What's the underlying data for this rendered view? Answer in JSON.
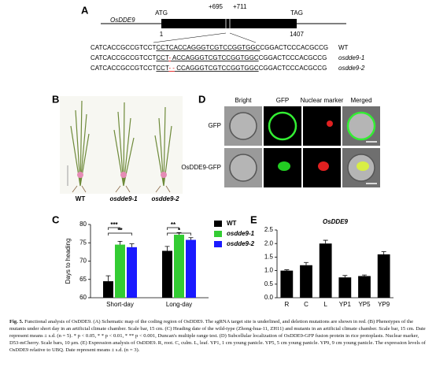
{
  "panel_labels": [
    "A",
    "B",
    "C",
    "D",
    "E"
  ],
  "schematic": {
    "gene": "OsDDE9",
    "start_codon": "ATG",
    "stop_codon": "TAG",
    "site_left": "+695",
    "site_right": "+711",
    "pos_start": "1",
    "pos_end": "1407",
    "sequences": [
      {
        "prefix": "CATCACCGCCGTCCT",
        "target": [
          {
            "text": "CCTCACCAGGGTCGTCCGGTGGC",
            "deleted": false
          }
        ],
        "suffix": "CGGACTCCCACGCCG",
        "label": "WT"
      },
      {
        "prefix": "CATCACCGCCGTCCT",
        "target": [
          {
            "text": "CCT",
            "deleted": false
          },
          {
            "text": "-",
            "deleted": true
          },
          {
            "text": " ACCAGGGTCGTCCGGTGGC",
            "deleted": false
          }
        ],
        "suffix": "CGGACTCCCACGCCG",
        "label": "osdde9-1"
      },
      {
        "prefix": "CATCACCGCCGTCCT",
        "target": [
          {
            "text": "CCT",
            "deleted": false
          },
          {
            "text": "- -",
            "deleted": true
          },
          {
            "text": " CCAGGGTCGTCCGGTGGC",
            "deleted": false
          }
        ],
        "suffix": "CGGACTCCCACGCCG",
        "label": "osdde9-2"
      }
    ]
  },
  "phenotype": {
    "labels": [
      "WT",
      "osdde9-1",
      "osdde9-2"
    ]
  },
  "localization": {
    "columns": [
      "Bright",
      "GFP",
      "Nuclear marker",
      "Merged"
    ],
    "rows": [
      "GFP",
      "OsDDE9-GFP"
    ]
  },
  "chart_data": [
    {
      "type": "grouped-bar",
      "y_label": "Days to heading",
      "categories": [
        "Short-day",
        "Long-day"
      ],
      "series": [
        {
          "name": "WT",
          "color": "#000000",
          "values": [
            64.5,
            72.8
          ],
          "errors": [
            1.5,
            1.2
          ]
        },
        {
          "name": "osdde9-1",
          "color": "#33cc33",
          "values": [
            74.5,
            77.2
          ],
          "errors": [
            0.9,
            0.6
          ]
        },
        {
          "name": "osdde9-2",
          "color": "#1a1aff",
          "values": [
            73.8,
            75.8
          ],
          "errors": [
            0.9,
            0.6
          ]
        }
      ],
      "annotations": [
        "***",
        "**",
        "**",
        "*"
      ],
      "ylim": [
        60,
        80
      ],
      "yticks": [
        60,
        65,
        70,
        75,
        80
      ]
    },
    {
      "type": "bar",
      "title": "OsDDE9",
      "categories": [
        "R",
        "C",
        "L",
        "YP1",
        "YP5",
        "YP9"
      ],
      "values": [
        1.0,
        1.2,
        2.0,
        0.75,
        0.8,
        1.6
      ],
      "errors": [
        0.03,
        0.1,
        0.12,
        0.07,
        0.04,
        0.1
      ],
      "color": "#000000",
      "ylim": [
        0,
        2.5
      ],
      "yticks": [
        {
          "value": 0,
          "label": "0.0"
        },
        0.5,
        {
          "value": 1,
          "label": "1.0"
        },
        1.5,
        {
          "value": 2,
          "label": "2.0"
        },
        2.5
      ]
    }
  ],
  "caption": {
    "label": "Fig. 5.",
    "text": "Functional analysis of OsDDE9. (A) Schematic map of the coding region of OsDDE9. The sgRNA target site is underlined, and deletion mutations are shown in red. (B) Phenotypes of the mutants under short day in an artificial climate chamber. Scale bar, 15 cm. (C) Heading date of the wild-type (Zhong-hua-11, ZH11) and mutants in an artificial climate chamber. Scale bar, 15 cm. Date represent means ± s.d. (n = 5). * p < 0.05, * * p < 0.01, * ** p < 0.001, Duncan's multiple range test. (D) Subcellular localization of OsDDE9-GFP fusion protein in rice protoplasts. Nuclear marker, D53-mCherry. Scale bars, 10 μm. (E) Expression analysis of OsDDE9. R, root. C, culm. L, leaf. YP1, 1 cm young panicle. YP5, 5 cm young panicle. YP9, 9 cm young panicle. The expression levels of OsDDE9 relative to UBQ. Date represent means ± s.d. (n = 3)."
  }
}
